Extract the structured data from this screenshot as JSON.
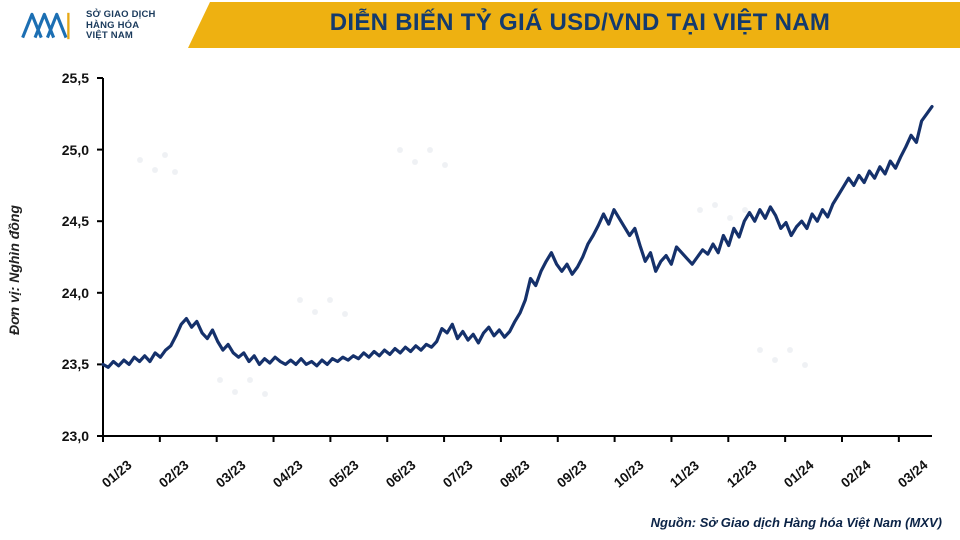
{
  "title": "DIỄN BIẾN TỶ GIÁ USD/VND TẠI VIỆT NAM",
  "source": "Nguồn: Sở Giao dịch Hàng hóa Việt Nam (MXV)",
  "y_axis_label": "Đơn vị: Nghìn đồng",
  "logo": {
    "line1": "SỞ GIAO DỊCH",
    "line2": "HÀNG HÓA",
    "line3": "VIỆT NAM",
    "icon_stroke": "#1c6fb3",
    "icon_accent": "#e6a815"
  },
  "colors": {
    "title_band": "#eeb111",
    "title_text": "#133a6e",
    "axis": "#000000",
    "tick_text": "#111111",
    "series": "#15316b",
    "background": "#ffffff",
    "bg_map": "#0d2e5c"
  },
  "chart": {
    "type": "line",
    "ylim": [
      23.0,
      25.5
    ],
    "ytick_step": 0.5,
    "yticks": [
      "23,0",
      "23,5",
      "24,0",
      "24,5",
      "25,0",
      "25,5"
    ],
    "xlabels": [
      "01/23",
      "02/23",
      "03/23",
      "04/23",
      "05/23",
      "06/23",
      "07/23",
      "08/23",
      "09/23",
      "10/23",
      "11/23",
      "12/23",
      "01/24",
      "02/24",
      "03/24"
    ],
    "line_width": 3.2,
    "values": [
      23.5,
      23.48,
      23.52,
      23.49,
      23.53,
      23.5,
      23.55,
      23.52,
      23.56,
      23.52,
      23.58,
      23.55,
      23.6,
      23.63,
      23.7,
      23.78,
      23.82,
      23.76,
      23.8,
      23.72,
      23.68,
      23.74,
      23.66,
      23.6,
      23.64,
      23.58,
      23.55,
      23.58,
      23.52,
      23.56,
      23.5,
      23.54,
      23.51,
      23.55,
      23.52,
      23.5,
      23.53,
      23.5,
      23.54,
      23.5,
      23.52,
      23.49,
      23.53,
      23.5,
      23.54,
      23.52,
      23.55,
      23.53,
      23.56,
      23.54,
      23.58,
      23.55,
      23.59,
      23.56,
      23.6,
      23.57,
      23.61,
      23.58,
      23.62,
      23.59,
      23.63,
      23.6,
      23.64,
      23.62,
      23.66,
      23.75,
      23.72,
      23.78,
      23.68,
      23.73,
      23.67,
      23.71,
      23.65,
      23.72,
      23.76,
      23.7,
      23.74,
      23.69,
      23.73,
      23.8,
      23.86,
      23.95,
      24.1,
      24.05,
      24.15,
      24.22,
      24.28,
      24.2,
      24.15,
      24.2,
      24.13,
      24.18,
      24.25,
      24.34,
      24.4,
      24.47,
      24.55,
      24.48,
      24.58,
      24.52,
      24.46,
      24.4,
      24.45,
      24.33,
      24.22,
      24.28,
      24.15,
      24.22,
      24.26,
      24.2,
      24.32,
      24.28,
      24.24,
      24.2,
      24.25,
      24.3,
      24.27,
      24.34,
      24.28,
      24.4,
      24.33,
      24.45,
      24.39,
      24.5,
      24.56,
      24.5,
      24.58,
      24.52,
      24.6,
      24.54,
      24.45,
      24.49,
      24.4,
      24.46,
      24.5,
      24.45,
      24.55,
      24.5,
      24.58,
      24.53,
      24.62,
      24.68,
      24.74,
      24.8,
      24.75,
      24.82,
      24.77,
      24.85,
      24.8,
      24.88,
      24.83,
      24.92,
      24.87,
      24.95,
      25.02,
      25.1,
      25.05,
      25.2,
      25.25,
      25.3
    ]
  }
}
